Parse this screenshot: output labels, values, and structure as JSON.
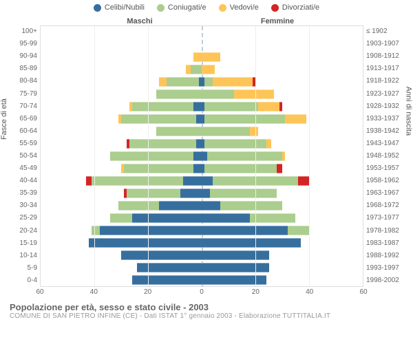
{
  "legend": [
    {
      "label": "Celibi/Nubili",
      "color": "#366f9e"
    },
    {
      "label": "Coniugati/e",
      "color": "#abcd8e"
    },
    {
      "label": "Vedovi/e",
      "color": "#fdc558"
    },
    {
      "label": "Divorziati/e",
      "color": "#d42424"
    }
  ],
  "headers": {
    "male": "Maschi",
    "female": "Femmine"
  },
  "y_title_left": "Fasce di età",
  "y_title_right": "Anni di nascita",
  "title": "Popolazione per età, sesso e stato civile - 2003",
  "subtitle": "COMUNE DI SAN PIETRO INFINE (CE) - Dati ISTAT 1° gennaio 2003 - Elaborazione TUTTITALIA.IT",
  "x_max": 60,
  "x_ticks": [
    60,
    40,
    20,
    0,
    20,
    40,
    60
  ],
  "background_color": "#ffffff",
  "grid_color": "#eeeeee",
  "center_line_color": "#bcd",
  "rows": [
    {
      "age": "100+",
      "birth": "≤ 1902",
      "m": [
        0,
        0,
        0,
        0
      ],
      "f": [
        0,
        0,
        0,
        0
      ]
    },
    {
      "age": "95-99",
      "birth": "1903-1907",
      "m": [
        0,
        0,
        0,
        0
      ],
      "f": [
        0,
        0,
        0,
        0
      ]
    },
    {
      "age": "90-94",
      "birth": "1908-1912",
      "m": [
        0,
        0,
        3,
        0
      ],
      "f": [
        0,
        0,
        7,
        0
      ]
    },
    {
      "age": "85-89",
      "birth": "1913-1917",
      "m": [
        0,
        4,
        2,
        0
      ],
      "f": [
        0,
        0,
        5,
        0
      ]
    },
    {
      "age": "80-84",
      "birth": "1918-1922",
      "m": [
        1,
        12,
        3,
        0
      ],
      "f": [
        1,
        3,
        15,
        1
      ]
    },
    {
      "age": "75-79",
      "birth": "1923-1927",
      "m": [
        0,
        17,
        0,
        0
      ],
      "f": [
        0,
        12,
        15,
        0
      ]
    },
    {
      "age": "70-74",
      "birth": "1928-1932",
      "m": [
        3,
        23,
        1,
        0
      ],
      "f": [
        1,
        20,
        8,
        1
      ]
    },
    {
      "age": "65-69",
      "birth": "1933-1937",
      "m": [
        2,
        28,
        1,
        0
      ],
      "f": [
        1,
        30,
        8,
        0
      ]
    },
    {
      "age": "60-64",
      "birth": "1938-1942",
      "m": [
        0,
        17,
        0,
        0
      ],
      "f": [
        0,
        18,
        3,
        0
      ]
    },
    {
      "age": "55-59",
      "birth": "1943-1947",
      "m": [
        2,
        25,
        0,
        1
      ],
      "f": [
        1,
        23,
        2,
        0
      ]
    },
    {
      "age": "50-54",
      "birth": "1948-1952",
      "m": [
        3,
        31,
        0,
        0
      ],
      "f": [
        2,
        28,
        1,
        0
      ]
    },
    {
      "age": "45-49",
      "birth": "1953-1957",
      "m": [
        3,
        26,
        1,
        0
      ],
      "f": [
        1,
        27,
        0,
        2
      ]
    },
    {
      "age": "40-44",
      "birth": "1958-1962",
      "m": [
        7,
        34,
        0,
        2
      ],
      "f": [
        4,
        32,
        0,
        4
      ]
    },
    {
      "age": "35-39",
      "birth": "1963-1967",
      "m": [
        8,
        20,
        0,
        1
      ],
      "f": [
        3,
        25,
        0,
        0
      ]
    },
    {
      "age": "30-34",
      "birth": "1968-1972",
      "m": [
        16,
        15,
        0,
        0
      ],
      "f": [
        7,
        23,
        0,
        0
      ]
    },
    {
      "age": "25-29",
      "birth": "1973-1977",
      "m": [
        26,
        8,
        0,
        0
      ],
      "f": [
        18,
        17,
        0,
        0
      ]
    },
    {
      "age": "20-24",
      "birth": "1978-1982",
      "m": [
        38,
        3,
        0,
        0
      ],
      "f": [
        32,
        8,
        0,
        0
      ]
    },
    {
      "age": "15-19",
      "birth": "1983-1987",
      "m": [
        42,
        0,
        0,
        0
      ],
      "f": [
        37,
        0,
        0,
        0
      ]
    },
    {
      "age": "10-14",
      "birth": "1988-1992",
      "m": [
        30,
        0,
        0,
        0
      ],
      "f": [
        25,
        0,
        0,
        0
      ]
    },
    {
      "age": "5-9",
      "birth": "1993-1997",
      "m": [
        24,
        0,
        0,
        0
      ],
      "f": [
        25,
        0,
        0,
        0
      ]
    },
    {
      "age": "0-4",
      "birth": "1998-2002",
      "m": [
        26,
        0,
        0,
        0
      ],
      "f": [
        24,
        0,
        0,
        0
      ]
    }
  ]
}
